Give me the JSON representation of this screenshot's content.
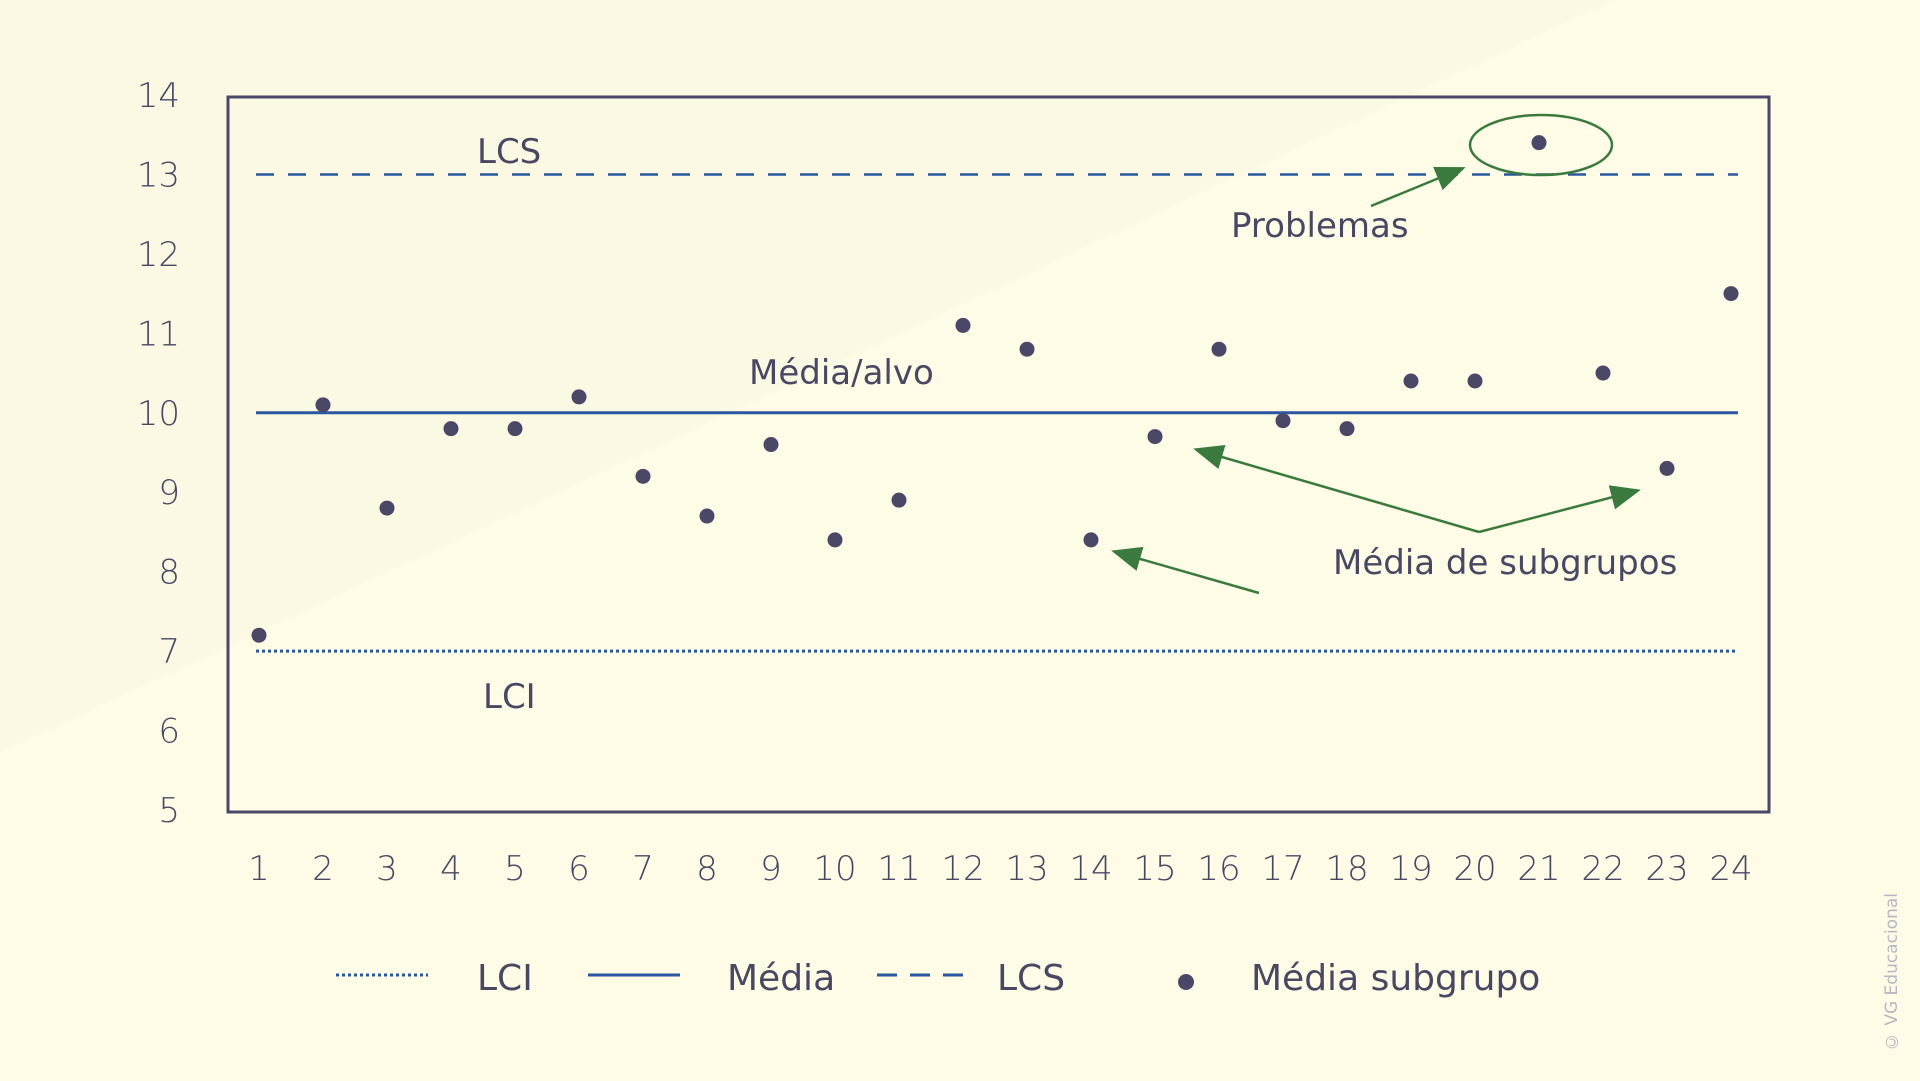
{
  "chart_data": {
    "type": "scatter",
    "x": [
      1,
      2,
      3,
      4,
      5,
      6,
      7,
      8,
      9,
      10,
      11,
      12,
      13,
      14,
      15,
      16,
      17,
      18,
      19,
      20,
      21,
      22,
      23,
      24
    ],
    "series": [
      {
        "name": "Média subgrupo",
        "values": [
          7.2,
          10.1,
          8.8,
          9.8,
          9.8,
          10.2,
          9.2,
          8.7,
          9.6,
          8.4,
          8.9,
          11.1,
          10.8,
          8.4,
          9.7,
          10.8,
          9.9,
          9.8,
          10.4,
          10.4,
          13.4,
          10.5,
          9.3,
          11.5
        ]
      }
    ],
    "reference_lines": {
      "LCI": 7.0,
      "Media": 10.0,
      "LCS": 13.0
    },
    "ylim": [
      5,
      14
    ],
    "yticks": [
      "5",
      "6",
      "7",
      "8",
      "9",
      "10",
      "11",
      "12",
      "13",
      "14"
    ],
    "xticks": [
      "1",
      "2",
      "3",
      "4",
      "5",
      "6",
      "7",
      "8",
      "9",
      "10",
      "11",
      "12",
      "13",
      "14",
      "15",
      "16",
      "17",
      "18",
      "19",
      "20",
      "21",
      "22",
      "23",
      "24"
    ],
    "annotations": {
      "lcs": "LCS",
      "lci": "LCI",
      "mean": "Média/alvo",
      "problems": "Problemas",
      "subgroups": "Média de subgrupos"
    },
    "legend": [
      {
        "label": "LCI",
        "style": "dotted"
      },
      {
        "label": "Média",
        "style": "solid"
      },
      {
        "label": "LCS",
        "style": "dashed"
      },
      {
        "label": "Média subgrupo",
        "style": "dot"
      }
    ],
    "legend_position": "bottom",
    "grid": false
  },
  "colors": {
    "line": "#2b57a0",
    "point": "#4b4867",
    "axis": "#4b4867",
    "arrow": "#3b7a3e"
  },
  "credit": "© VG Educacional"
}
